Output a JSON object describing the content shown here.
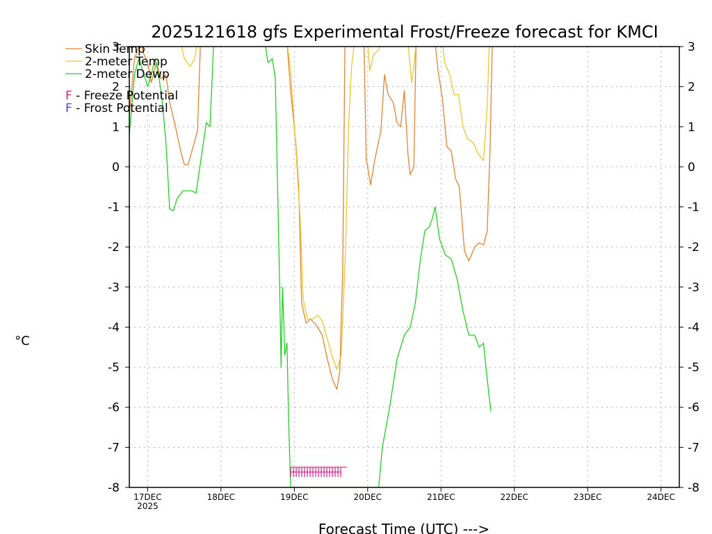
{
  "chart_data": {
    "type": "line",
    "title": "2025121618 gfs Experimental Frost/Freeze forecast for KMCI",
    "xlabel": "Forecast Time (UTC) --->",
    "ylabel_unit": "°C",
    "ylim": [
      -8,
      3
    ],
    "xlim": [
      16.75,
      24.25
    ],
    "grid": true,
    "legend_position": "top-left",
    "yticks": [
      "-8",
      "-7",
      "-6",
      "-5",
      "-4",
      "-3",
      "-2",
      "-1",
      "0",
      "1",
      "2",
      "3"
    ],
    "xticks": [
      {
        "x": 17,
        "label": "17DEC",
        "year": "2025"
      },
      {
        "x": 18,
        "label": "18DEC"
      },
      {
        "x": 19,
        "label": "19DEC"
      },
      {
        "x": 20,
        "label": "20DEC"
      },
      {
        "x": 21,
        "label": "21DEC"
      },
      {
        "x": 22,
        "label": "22DEC"
      },
      {
        "x": 23,
        "label": "23DEC"
      },
      {
        "x": 24,
        "label": "24DEC"
      }
    ],
    "legend": [
      {
        "name": "Skin Temp",
        "color": "#e0822f"
      },
      {
        "name": "2-meter Temp",
        "color": "#e8c82a"
      },
      {
        "name": "2-meter Dewp",
        "color": "#22cc22"
      }
    ],
    "potential_legend": [
      {
        "letter": "F",
        "text": " - Freeze Potential",
        "color": "#cc2288"
      },
      {
        "letter": "F",
        "text": " - Frost Potential",
        "color": "#4444dd"
      }
    ],
    "freeze_marks": {
      "color": "#cc2288",
      "start": 18.95,
      "end": 19.72,
      "y": -7.6
    },
    "series": [
      {
        "name": "Skin Temp",
        "color": "#e0822f",
        "points": [
          [
            16.75,
            1.3
          ],
          [
            16.82,
            2.7
          ],
          [
            16.9,
            3.1
          ],
          [
            16.95,
            2.8
          ],
          [
            17.0,
            2.6
          ],
          [
            17.05,
            2.1
          ],
          [
            17.12,
            2.6
          ],
          [
            17.18,
            2.2
          ],
          [
            17.25,
            2.3
          ],
          [
            17.3,
            1.6
          ],
          [
            17.38,
            1.0
          ],
          [
            17.45,
            0.4
          ],
          [
            17.5,
            0.05
          ],
          [
            17.55,
            0.05
          ],
          [
            17.62,
            0.5
          ],
          [
            17.68,
            0.9
          ],
          [
            17.72,
            3.1
          ],
          [
            18.9,
            3.1
          ],
          [
            18.95,
            1.9
          ],
          [
            19.02,
            0.6
          ],
          [
            19.06,
            -0.5
          ],
          [
            19.1,
            -3.4
          ],
          [
            19.16,
            -3.9
          ],
          [
            19.22,
            -3.8
          ],
          [
            19.3,
            -3.95
          ],
          [
            19.38,
            -4.2
          ],
          [
            19.45,
            -4.8
          ],
          [
            19.52,
            -5.3
          ],
          [
            19.58,
            -5.55
          ],
          [
            19.62,
            -5.1
          ],
          [
            19.66,
            -2.6
          ],
          [
            19.69,
            3.1
          ],
          [
            19.95,
            3.1
          ],
          [
            19.98,
            0.2
          ],
          [
            20.04,
            -0.45
          ],
          [
            20.1,
            0.2
          ],
          [
            20.18,
            0.9
          ],
          [
            20.23,
            2.3
          ],
          [
            20.28,
            1.8
          ],
          [
            20.35,
            1.6
          ],
          [
            20.4,
            1.1
          ],
          [
            20.45,
            1.0
          ],
          [
            20.5,
            1.9
          ],
          [
            20.55,
            0.3
          ],
          [
            20.58,
            -0.2
          ],
          [
            20.63,
            0.0
          ],
          [
            20.66,
            3.1
          ],
          [
            20.92,
            3.1
          ],
          [
            20.96,
            2.4
          ],
          [
            21.02,
            1.7
          ],
          [
            21.08,
            0.5
          ],
          [
            21.14,
            0.4
          ],
          [
            21.2,
            -0.3
          ],
          [
            21.25,
            -0.5
          ],
          [
            21.32,
            -2.1
          ],
          [
            21.38,
            -2.35
          ],
          [
            21.46,
            -2.0
          ],
          [
            21.52,
            -1.9
          ],
          [
            21.58,
            -1.95
          ],
          [
            21.63,
            -1.6
          ],
          [
            21.67,
            0.5
          ],
          [
            21.7,
            3.1
          ]
        ]
      },
      {
        "name": "2-meter Temp",
        "color": "#e8c82a",
        "points": [
          [
            17.45,
            3.1
          ],
          [
            17.5,
            2.7
          ],
          [
            17.58,
            2.5
          ],
          [
            17.64,
            2.7
          ],
          [
            17.68,
            3.1
          ],
          [
            18.9,
            3.1
          ],
          [
            18.95,
            2.4
          ],
          [
            19.02,
            0.5
          ],
          [
            19.08,
            -1.3
          ],
          [
            19.12,
            -3.3
          ],
          [
            19.18,
            -3.8
          ],
          [
            19.25,
            -3.8
          ],
          [
            19.32,
            -3.7
          ],
          [
            19.38,
            -3.85
          ],
          [
            19.45,
            -4.3
          ],
          [
            19.52,
            -4.75
          ],
          [
            19.58,
            -5.05
          ],
          [
            19.64,
            -4.7
          ],
          [
            19.7,
            -2.0
          ],
          [
            19.74,
            1.0
          ],
          [
            19.78,
            2.5
          ],
          [
            19.82,
            3.1
          ],
          [
            20.0,
            3.1
          ],
          [
            20.03,
            2.4
          ],
          [
            20.08,
            2.8
          ],
          [
            20.14,
            2.9
          ],
          [
            20.2,
            3.1
          ],
          [
            20.55,
            3.1
          ],
          [
            20.6,
            2.1
          ],
          [
            20.63,
            2.5
          ],
          [
            20.66,
            3.1
          ],
          [
            21.02,
            3.1
          ],
          [
            21.05,
            2.6
          ],
          [
            21.12,
            2.3
          ],
          [
            21.18,
            1.8
          ],
          [
            21.24,
            1.8
          ],
          [
            21.3,
            1.0
          ],
          [
            21.36,
            0.7
          ],
          [
            21.44,
            0.6
          ],
          [
            21.5,
            0.35
          ],
          [
            21.58,
            0.15
          ],
          [
            21.63,
            1.5
          ],
          [
            21.66,
            3.1
          ]
        ]
      },
      {
        "name": "2-meter Dewp",
        "color": "#22cc22",
        "points": [
          [
            16.75,
            0.8
          ],
          [
            16.82,
            2.3
          ],
          [
            16.88,
            2.7
          ],
          [
            16.95,
            2.3
          ],
          [
            17.0,
            2.0
          ],
          [
            17.05,
            2.3
          ],
          [
            17.1,
            2.7
          ],
          [
            17.15,
            2.3
          ],
          [
            17.2,
            1.6
          ],
          [
            17.25,
            0.6
          ],
          [
            17.3,
            -1.05
          ],
          [
            17.35,
            -1.1
          ],
          [
            17.4,
            -0.8
          ],
          [
            17.48,
            -0.6
          ],
          [
            17.6,
            -0.6
          ],
          [
            17.66,
            -0.65
          ],
          [
            17.72,
            0.1
          ],
          [
            17.8,
            1.1
          ],
          [
            17.85,
            1.0
          ],
          [
            17.9,
            3.1
          ],
          [
            18.6,
            3.1
          ],
          [
            18.64,
            2.6
          ],
          [
            18.7,
            2.7
          ],
          [
            18.74,
            2.2
          ],
          [
            18.78,
            -1.2
          ],
          [
            18.8,
            -3.0
          ],
          [
            18.82,
            -5.0
          ],
          [
            18.84,
            -3.0
          ],
          [
            18.87,
            -4.7
          ],
          [
            18.9,
            -4.4
          ],
          [
            18.92,
            -6.2
          ],
          [
            18.95,
            -8.0
          ],
          [
            20.15,
            -8.0
          ],
          [
            20.2,
            -7.0
          ],
          [
            20.3,
            -6.0
          ],
          [
            20.4,
            -4.8
          ],
          [
            20.5,
            -4.2
          ],
          [
            20.58,
            -4.0
          ],
          [
            20.65,
            -3.4
          ],
          [
            20.72,
            -2.3
          ],
          [
            20.78,
            -1.6
          ],
          [
            20.84,
            -1.5
          ],
          [
            20.88,
            -1.3
          ],
          [
            20.92,
            -1.0
          ],
          [
            20.98,
            -1.8
          ],
          [
            21.06,
            -2.2
          ],
          [
            21.14,
            -2.3
          ],
          [
            21.22,
            -2.8
          ],
          [
            21.3,
            -3.6
          ],
          [
            21.38,
            -4.2
          ],
          [
            21.46,
            -4.2
          ],
          [
            21.52,
            -4.5
          ],
          [
            21.58,
            -4.4
          ],
          [
            21.63,
            -5.3
          ],
          [
            21.68,
            -6.1
          ]
        ]
      }
    ]
  }
}
